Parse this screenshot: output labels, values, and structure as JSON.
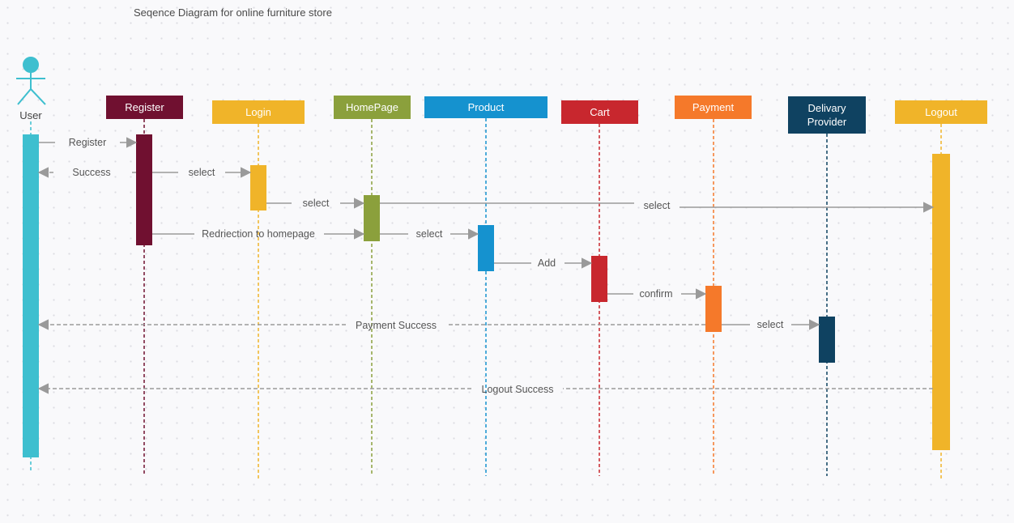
{
  "title": "Seqence Diagram for online furniture store",
  "actor": {
    "label": "User",
    "color": "#3ebfcf"
  },
  "participants": [
    {
      "id": "register",
      "label": "Register",
      "color": "#701030",
      "text_color": "#ffffff"
    },
    {
      "id": "login",
      "label": "Login",
      "color": "#f0b429",
      "text_color": "#ffffff"
    },
    {
      "id": "homepage",
      "label": "HomePage",
      "color": "#8ba03c",
      "text_color": "#ffffff"
    },
    {
      "id": "product",
      "label": "Product",
      "color": "#1592cf",
      "text_color": "#ffffff"
    },
    {
      "id": "cart",
      "label": "Cart",
      "color": "#c8272e",
      "text_color": "#ffffff"
    },
    {
      "id": "payment",
      "label": "Payment",
      "color": "#f5792a",
      "text_color": "#ffffff"
    },
    {
      "id": "delivery",
      "label": "Delivary Provider",
      "color": "#0f4261",
      "text_color": "#ffffff"
    },
    {
      "id": "logout",
      "label": "Logout",
      "color": "#f0b429",
      "text_color": "#ffffff"
    }
  ],
  "messages": [
    {
      "from": "user",
      "to": "register",
      "label": "Register",
      "style": "solid"
    },
    {
      "from": "register",
      "to": "user",
      "label": "Success",
      "style": "dashed"
    },
    {
      "from": "register",
      "to": "login",
      "label": "select",
      "style": "solid"
    },
    {
      "from": "login",
      "to": "homepage",
      "label": "select",
      "style": "solid"
    },
    {
      "from": "homepage",
      "to": "logout",
      "label": "select",
      "style": "solid"
    },
    {
      "from": "register",
      "to": "homepage",
      "label": "Redriection to homepage",
      "style": "solid"
    },
    {
      "from": "homepage",
      "to": "product",
      "label": "select",
      "style": "solid"
    },
    {
      "from": "product",
      "to": "cart",
      "label": "Add",
      "style": "solid"
    },
    {
      "from": "cart",
      "to": "payment",
      "label": "confirm",
      "style": "solid"
    },
    {
      "from": "payment",
      "to": "user",
      "label": "Payment Success",
      "style": "dashed"
    },
    {
      "from": "payment",
      "to": "delivery",
      "label": "select",
      "style": "solid"
    },
    {
      "from": "logout",
      "to": "user",
      "label": "Logout Success",
      "style": "dashed"
    }
  ]
}
